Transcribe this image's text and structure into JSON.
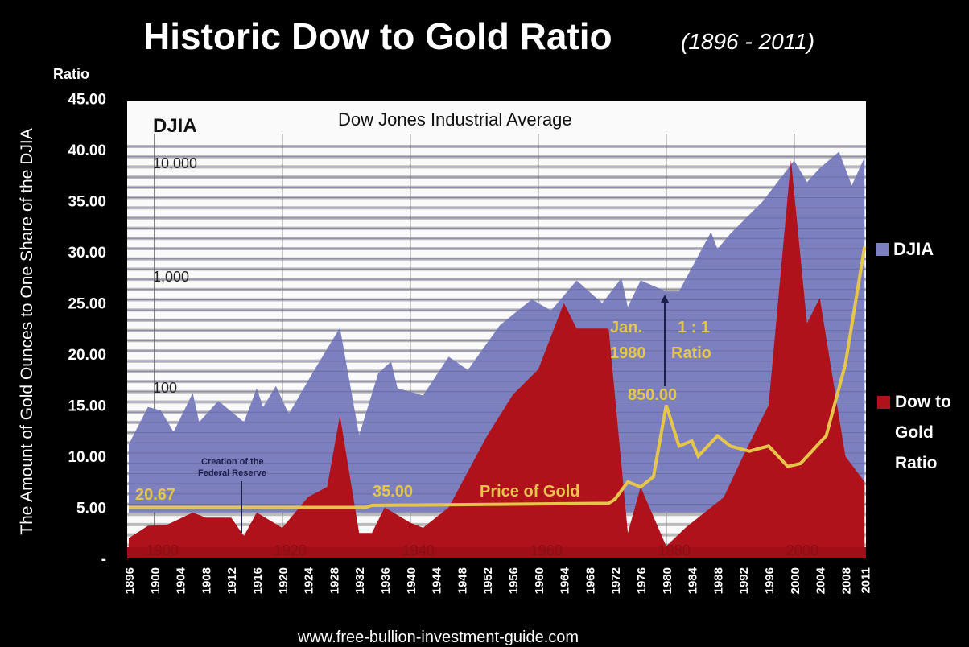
{
  "chart_data": {
    "type": "area",
    "title": "Historic Dow to Gold Ratio",
    "subtitle": "(1896 - 2011)",
    "ylabel": "The Amount of Gold Ounces to One Share of the DJIA",
    "ylabel_top": "Ratio",
    "ylim": [
      0,
      45
    ],
    "y_ticks": [
      "45.00",
      "40.00",
      "35.00",
      "30.00",
      "25.00",
      "20.00",
      "15.00",
      "10.00",
      "5.00",
      "-"
    ],
    "x_ticks": [
      "1896",
      "1900",
      "1904",
      "1908",
      "1912",
      "1916",
      "1920",
      "1924",
      "1928",
      "1932",
      "1936",
      "1940",
      "1944",
      "1948",
      "1952",
      "1956",
      "1960",
      "1964",
      "1968",
      "1972",
      "1976",
      "1980",
      "1984",
      "1988",
      "1992",
      "1996",
      "2000",
      "2004",
      "2008",
      "2011"
    ],
    "decade_labels": [
      "1900",
      "1920",
      "1940",
      "1960",
      "1980",
      "2000"
    ],
    "inner_title": "Dow Jones Industrial Average",
    "djia_axis": {
      "label": "DJIA",
      "ticks": [
        "10,000",
        "1,000",
        "100"
      ],
      "scale": "log"
    },
    "legend": [
      {
        "name": "DJIA",
        "color": "#7d80be"
      },
      {
        "name": "Dow to Gold Ratio",
        "lines": [
          "Dow to",
          "Gold",
          "Ratio"
        ],
        "color": "#b0121c"
      }
    ],
    "series": [
      {
        "name": "DJIA",
        "color": "#7d80be",
        "x": [
          1896,
          1899,
          1901,
          1903,
          1906,
          1907,
          1910,
          1914,
          1916,
          1917,
          1919,
          1921,
          1925,
          1929,
          1932,
          1935,
          1937,
          1938,
          1942,
          1946,
          1949,
          1954,
          1959,
          1962,
          1966,
          1970,
          1973,
          1974,
          1976,
          1980,
          1982,
          1987,
          1988,
          1990,
          1995,
          2000,
          2002,
          2004,
          2007,
          2009,
          2011
        ],
        "y": [
          35,
          75,
          70,
          45,
          100,
          55,
          85,
          55,
          110,
          75,
          115,
          65,
          160,
          380,
          42,
          150,
          190,
          110,
          95,
          210,
          160,
          400,
          680,
          540,
          1000,
          630,
          1050,
          580,
          1000,
          800,
          800,
          2700,
          1900,
          2600,
          5000,
          11700,
          7500,
          10000,
          14000,
          7000,
          12500
        ]
      },
      {
        "name": "Dow to Gold Ratio",
        "color": "#b0121c",
        "x": [
          1896,
          1899,
          1902,
          1906,
          1908,
          1912,
          1914,
          1916,
          1920,
          1924,
          1927,
          1929,
          1932,
          1934,
          1936,
          1940,
          1942,
          1946,
          1952,
          1956,
          1960,
          1964,
          1966,
          1971,
          1974,
          1976,
          1980,
          1983,
          1986,
          1989,
          1992,
          1996,
          1999.5,
          2002,
          2004,
          2008,
          2011
        ],
        "y": [
          2,
          3.2,
          3.3,
          4.5,
          4,
          4,
          2.2,
          4.5,
          3,
          6,
          7,
          14,
          2.5,
          2.5,
          5,
          3.5,
          3,
          5,
          12,
          16,
          18.5,
          25,
          22.5,
          22.5,
          2.5,
          7,
          1.2,
          3,
          4.5,
          6,
          10,
          15,
          39,
          23,
          25.5,
          10,
          7.5
        ]
      },
      {
        "name": "Price of Gold",
        "color": "#e6c64a",
        "x": [
          1896,
          1933,
          1934,
          1971,
          1972,
          1974,
          1976,
          1978,
          1980,
          1982,
          1984,
          1985,
          1988,
          1990,
          1993,
          1996,
          1999,
          2001,
          2005,
          2008,
          2011
        ],
        "y": [
          5,
          5,
          5.2,
          5.4,
          5.8,
          7.5,
          7,
          8,
          15,
          11,
          11.5,
          10,
          12,
          11,
          10.5,
          11,
          9,
          9.3,
          12,
          19,
          30.5
        ]
      }
    ],
    "annotations": {
      "gold_1896": "20.67",
      "gold_1934": "35.00",
      "gold_label": "Price of Gold",
      "jan": "Jan.",
      "year": "1980",
      "one_one": "1 : 1",
      "ratio": "Ratio",
      "peak": "850.00",
      "fed_1": "Creation of the",
      "fed_2": "Federal Reserve"
    }
  },
  "footer": "www.free-bullion-investment-guide.com"
}
